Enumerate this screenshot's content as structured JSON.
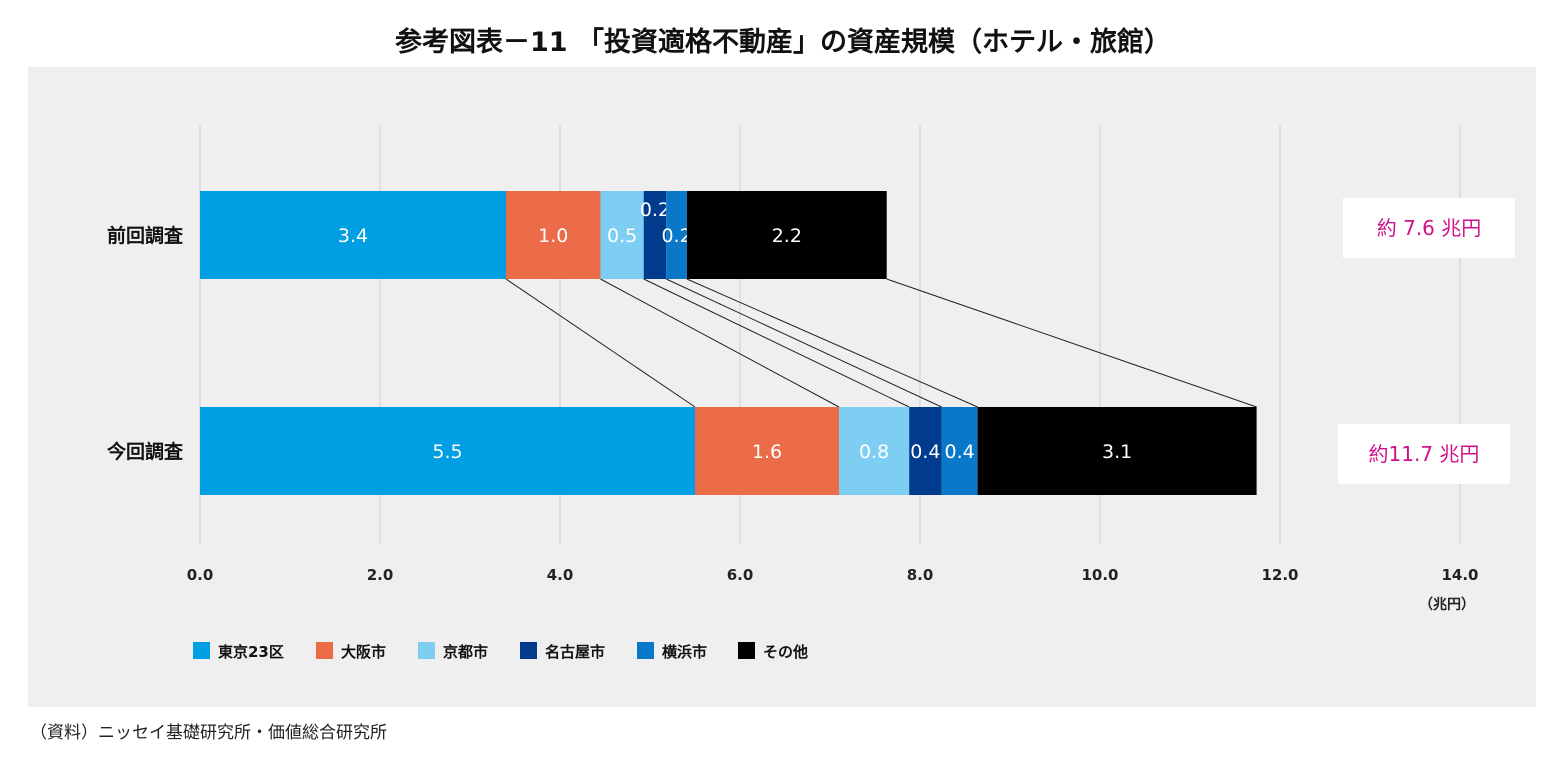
{
  "title": "参考図表－11 「投資適格不動産」の資産規模（ホテル・旅館）",
  "source": "（資料）ニッセイ基礎研究所・価値総合研究所",
  "colors": {
    "panel_bg": "#efefef",
    "grid": "#cfcfcf",
    "total_text": "#d0108a"
  },
  "chart_data": {
    "type": "bar",
    "orientation": "horizontal",
    "stacked": true,
    "categories": [
      "前回調査",
      "今回調査"
    ],
    "series": [
      {
        "name": "東京23区",
        "color": "#009fe3",
        "values": [
          3.4,
          5.5
        ],
        "labels": [
          "3.4",
          "5.5"
        ]
      },
      {
        "name": "大阪市",
        "color": "#ec6c49",
        "values": [
          1.05,
          1.6
        ],
        "labels": [
          "1.0",
          "1.6"
        ]
      },
      {
        "name": "京都市",
        "color": "#7ecef4",
        "values": [
          0.48,
          0.78
        ],
        "labels": [
          "0.5",
          "0.8"
        ]
      },
      {
        "name": "名古屋市",
        "color": "#003b8e",
        "values": [
          0.25,
          0.36
        ],
        "labels": [
          "0.2",
          "0.4"
        ]
      },
      {
        "name": "横浜市",
        "color": "#0a78c8",
        "values": [
          0.23,
          0.4
        ],
        "labels": [
          "0.2",
          "0.4"
        ]
      },
      {
        "name": "その他",
        "color": "#000000",
        "values": [
          2.22,
          3.1
        ],
        "labels": [
          "2.2",
          "3.1"
        ]
      }
    ],
    "totals": [
      "約 7.6 兆円",
      "約11.7 兆円"
    ],
    "xlim": [
      0,
      14
    ],
    "xticks": [
      "0.0",
      "2.0",
      "4.0",
      "6.0",
      "8.0",
      "10.0",
      "12.0",
      "14.0"
    ],
    "unit_label": "（兆円）",
    "grid": true,
    "legend_position": "bottom-left",
    "connector_lines": true
  }
}
